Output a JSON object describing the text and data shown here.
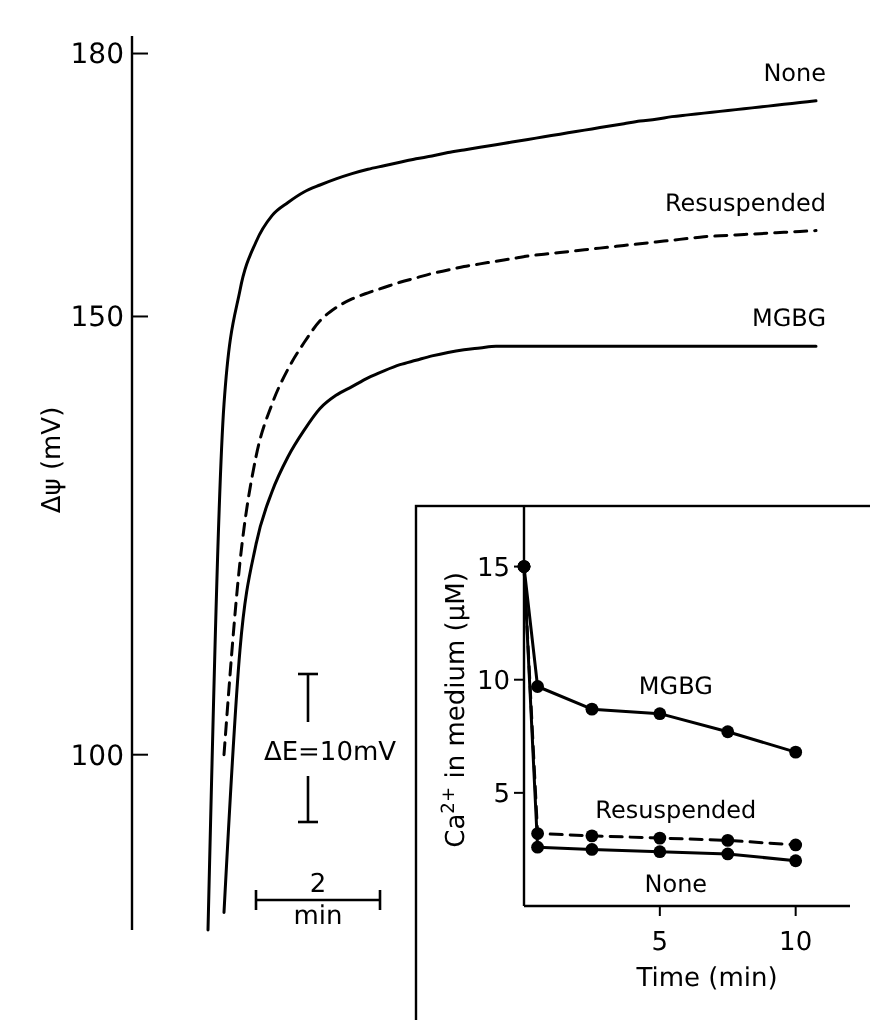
{
  "chart_data": [
    {
      "type": "line",
      "ylabel": "Δψ (mV)",
      "categories": [
        null,
        null,
        null,
        null,
        null,
        null,
        null,
        null,
        null,
        null,
        null,
        null,
        null,
        null,
        null,
        null,
        null,
        null,
        null,
        null,
        null,
        null,
        null,
        null,
        null,
        null,
        null,
        null,
        null,
        null,
        null,
        null,
        null,
        null,
        null,
        null,
        null,
        null,
        null
      ],
      "ylim": [
        80,
        182
      ],
      "yticks": [
        100,
        150,
        180
      ],
      "tick_labels": "y",
      "annotations": [
        "ΔE=10mV",
        "2 min"
      ],
      "series": [
        {
          "name": "None",
          "color": "#000000",
          "line_style": "solid",
          "values": [
            80,
            140,
            153,
            158.5,
            161.5,
            163,
            164.2,
            165,
            165.7,
            166.3,
            166.8,
            167.2,
            167.6,
            168,
            168.3,
            168.7,
            169,
            169.3,
            169.6,
            169.9,
            170.2,
            170.5,
            170.8,
            171.1,
            171.4,
            171.7,
            172,
            172.3,
            172.5,
            172.8,
            173,
            173.2,
            173.4,
            173.6,
            173.8,
            174,
            174.2,
            174.4,
            174.6
          ]
        },
        {
          "name": "Resuspended",
          "color": "#000000",
          "line_style": "dashed",
          "values": [
            null,
            100,
            122,
            134,
            140,
            144,
            147,
            149.5,
            151,
            152,
            152.7,
            153.3,
            153.9,
            154.4,
            154.9,
            155.3,
            155.7,
            156,
            156.3,
            156.6,
            156.9,
            157.1,
            157.3,
            157.5,
            157.7,
            157.9,
            158.1,
            158.3,
            158.5,
            158.7,
            158.9,
            159.1,
            159.2,
            159.3,
            159.4,
            159.5,
            159.6,
            159.7,
            159.8
          ]
        },
        {
          "name": "MGBG",
          "color": "#000000",
          "line_style": "solid",
          "values": [
            null,
            82,
            112,
            124,
            130,
            134,
            137,
            139.5,
            141,
            142,
            143,
            143.8,
            144.5,
            145,
            145.5,
            145.9,
            146.2,
            146.4,
            146.6,
            146.6,
            146.6,
            146.6,
            146.6,
            146.6,
            146.6,
            146.6,
            146.6,
            146.6,
            146.6,
            146.6,
            146.6,
            146.6,
            146.6,
            146.6,
            146.6,
            146.6,
            146.6,
            146.6,
            146.6
          ]
        }
      ]
    },
    {
      "type": "line",
      "xlabel": "Time (min)",
      "ylabel": "Ca$^{2+}$ in medium (μM)",
      "x": [
        0,
        0.5,
        2.5,
        5,
        7.5,
        10
      ],
      "xlim": [
        0,
        12
      ],
      "xticks": [
        5,
        10
      ],
      "ylim": [
        0,
        17.5
      ],
      "yticks": [
        5,
        10,
        15
      ],
      "marker": "circle",
      "series": [
        {
          "name": "MGBG",
          "color": "#000000",
          "line_style": "solid",
          "values": [
            15,
            9.7,
            8.7,
            8.5,
            7.7,
            6.8
          ]
        },
        {
          "name": "Resuspended",
          "color": "#000000",
          "line_style": "dashed",
          "values": [
            15,
            3.2,
            3.1,
            3.0,
            2.9,
            2.7
          ]
        },
        {
          "name": "None",
          "color": "#000000",
          "line_style": "solid",
          "values": [
            15,
            2.6,
            2.5,
            2.4,
            2.3,
            2.0
          ]
        }
      ]
    }
  ]
}
